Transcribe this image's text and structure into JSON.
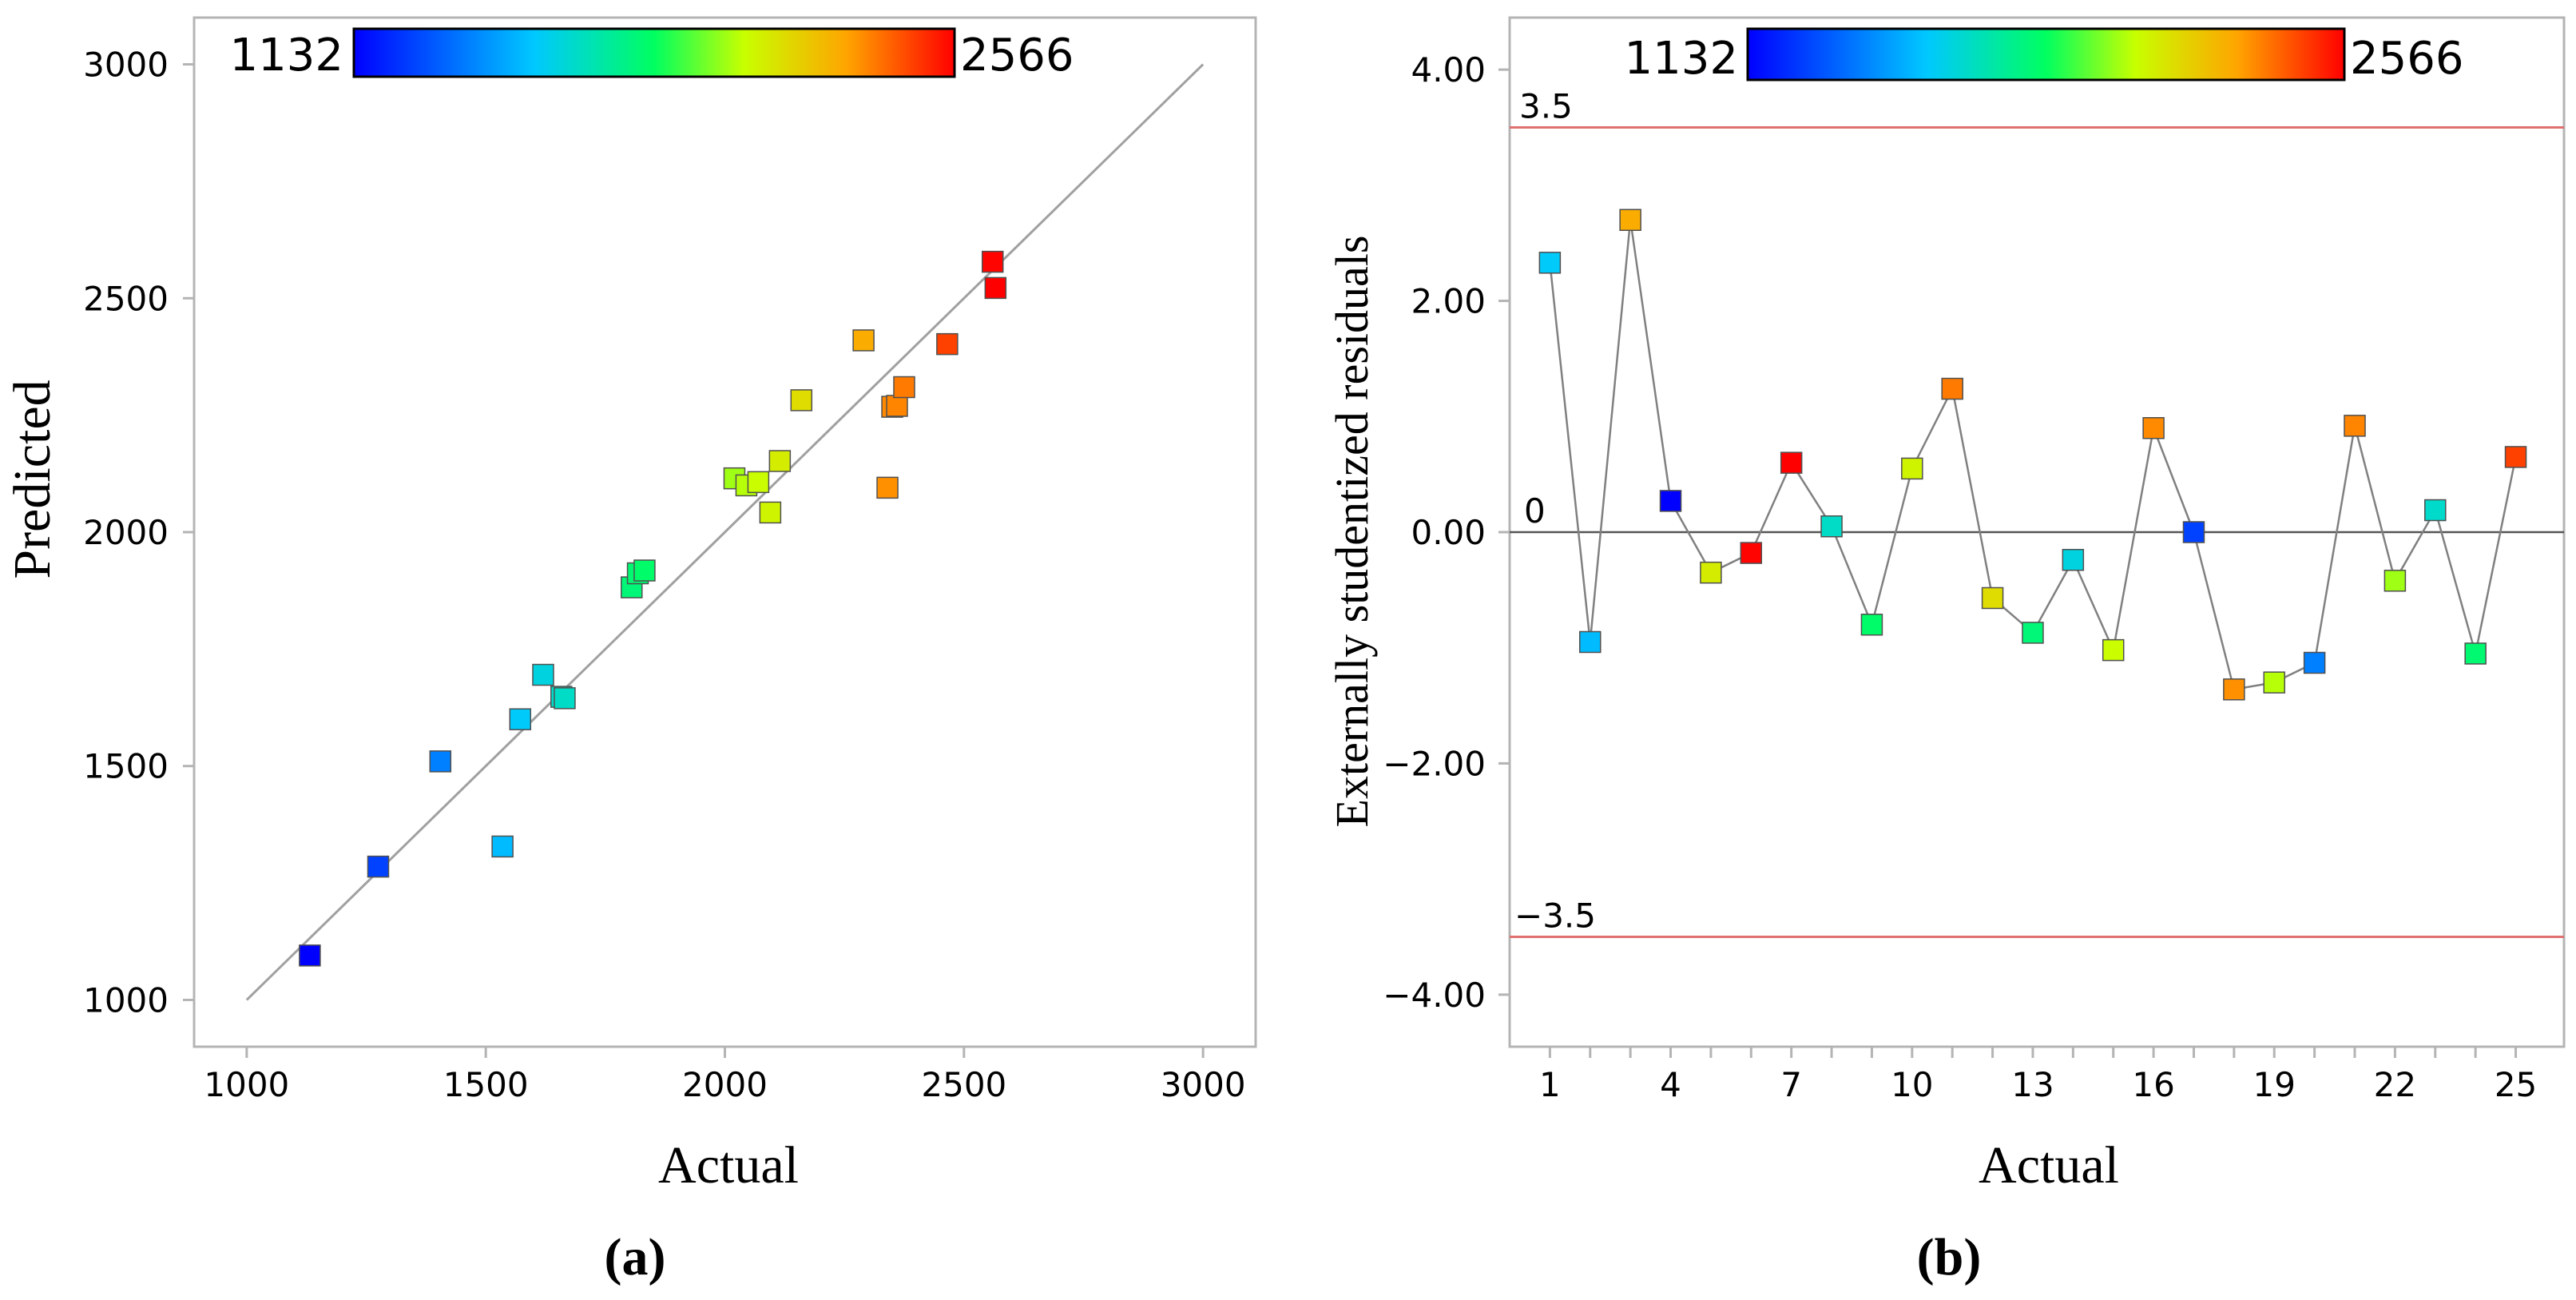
{
  "colors": {
    "stops": [
      "#0000ff",
      "#00c8ff",
      "#00ff60",
      "#c8ff00",
      "#ffa500",
      "#ff0000"
    ],
    "frame": "#b4b4b4",
    "fit_line": "#a0a0a0",
    "limit_line": "#e07070",
    "zero_line": "#555555",
    "connect_line": "#808080"
  },
  "chart_data": [
    {
      "type": "scatter",
      "panel_label": "(a)",
      "xlabel": "Actual",
      "ylabel": "Predicted",
      "xlim": [
        890,
        3110
      ],
      "ylim": [
        900,
        3100
      ],
      "xticks": [
        1000,
        1500,
        2000,
        2500,
        3000
      ],
      "xtick_labels": [
        "1000",
        "1500",
        "2000",
        "2500",
        "3000"
      ],
      "yticks": [
        1000,
        1500,
        2000,
        2500,
        3000
      ],
      "ytick_labels": [
        "1000",
        "1500",
        "2000",
        "2500",
        "3000"
      ],
      "reference_line": {
        "x": [
          1000,
          3000
        ],
        "y": [
          1000,
          3000
        ]
      },
      "colorbar": {
        "min_label": "1132",
        "max_label": "2566",
        "min": 1132,
        "max": 2566
      },
      "points": [
        {
          "x": 1132,
          "y": 1095
        },
        {
          "x": 1275,
          "y": 1285
        },
        {
          "x": 1405,
          "y": 1510
        },
        {
          "x": 1535,
          "y": 1328
        },
        {
          "x": 1572,
          "y": 1600
        },
        {
          "x": 1620,
          "y": 1695
        },
        {
          "x": 1658,
          "y": 1648
        },
        {
          "x": 1665,
          "y": 1645
        },
        {
          "x": 1805,
          "y": 1882
        },
        {
          "x": 1818,
          "y": 1912
        },
        {
          "x": 1832,
          "y": 1918
        },
        {
          "x": 2020,
          "y": 2115
        },
        {
          "x": 2045,
          "y": 2100
        },
        {
          "x": 2070,
          "y": 2107
        },
        {
          "x": 2095,
          "y": 2042
        },
        {
          "x": 2115,
          "y": 2152
        },
        {
          "x": 2160,
          "y": 2282
        },
        {
          "x": 2290,
          "y": 2410
        },
        {
          "x": 2340,
          "y": 2095
        },
        {
          "x": 2350,
          "y": 2268
        },
        {
          "x": 2360,
          "y": 2270
        },
        {
          "x": 2375,
          "y": 2310
        },
        {
          "x": 2465,
          "y": 2402
        },
        {
          "x": 2560,
          "y": 2578
        },
        {
          "x": 2566,
          "y": 2522
        }
      ]
    },
    {
      "type": "line",
      "panel_label": "(b)",
      "xlabel": "Actual",
      "ylabel": "Externally studentized residuals",
      "xlim": [
        0,
        26.2
      ],
      "ylim": [
        -4.45,
        4.45
      ],
      "xticks": [
        1,
        4,
        7,
        10,
        13,
        16,
        19,
        22,
        25
      ],
      "xtick_labels": [
        "1",
        "4",
        "7",
        "10",
        "13",
        "16",
        "19",
        "22",
        "25"
      ],
      "yticks": [
        -4,
        -2,
        0,
        2,
        4
      ],
      "ytick_labels": [
        "−4.00",
        "−2.00",
        "0.00",
        "2.00",
        "4.00"
      ],
      "limits": {
        "upper": 3.5,
        "lower": -3.5,
        "upper_label": "3.5",
        "lower_label": "−3.5"
      },
      "zero_label": "0",
      "colorbar": {
        "min_label": "1132",
        "max_label": "2566",
        "min": 1132,
        "max": 2566
      },
      "x": [
        1,
        2,
        3,
        4,
        5,
        6,
        7,
        8,
        9,
        10,
        11,
        12,
        13,
        14,
        15,
        16,
        17,
        18,
        19,
        20,
        21,
        22,
        23,
        24,
        25
      ],
      "values": [
        2.33,
        -0.95,
        2.7,
        0.27,
        -0.35,
        -0.18,
        0.6,
        0.05,
        -0.8,
        0.55,
        1.24,
        -0.57,
        -0.87,
        -0.24,
        -1.02,
        0.9,
        0.0,
        -1.36,
        -1.3,
        -1.13,
        0.92,
        -0.42,
        0.19,
        -1.05,
        0.65
      ],
      "color_values": [
        1572,
        1535,
        2290,
        1132,
        2115,
        2560,
        2566,
        1665,
        1832,
        2095,
        2375,
        2160,
        1805,
        1620,
        2070,
        2350,
        1275,
        2340,
        2045,
        1405,
        2360,
        2020,
        1658,
        1818,
        2465
      ]
    }
  ]
}
